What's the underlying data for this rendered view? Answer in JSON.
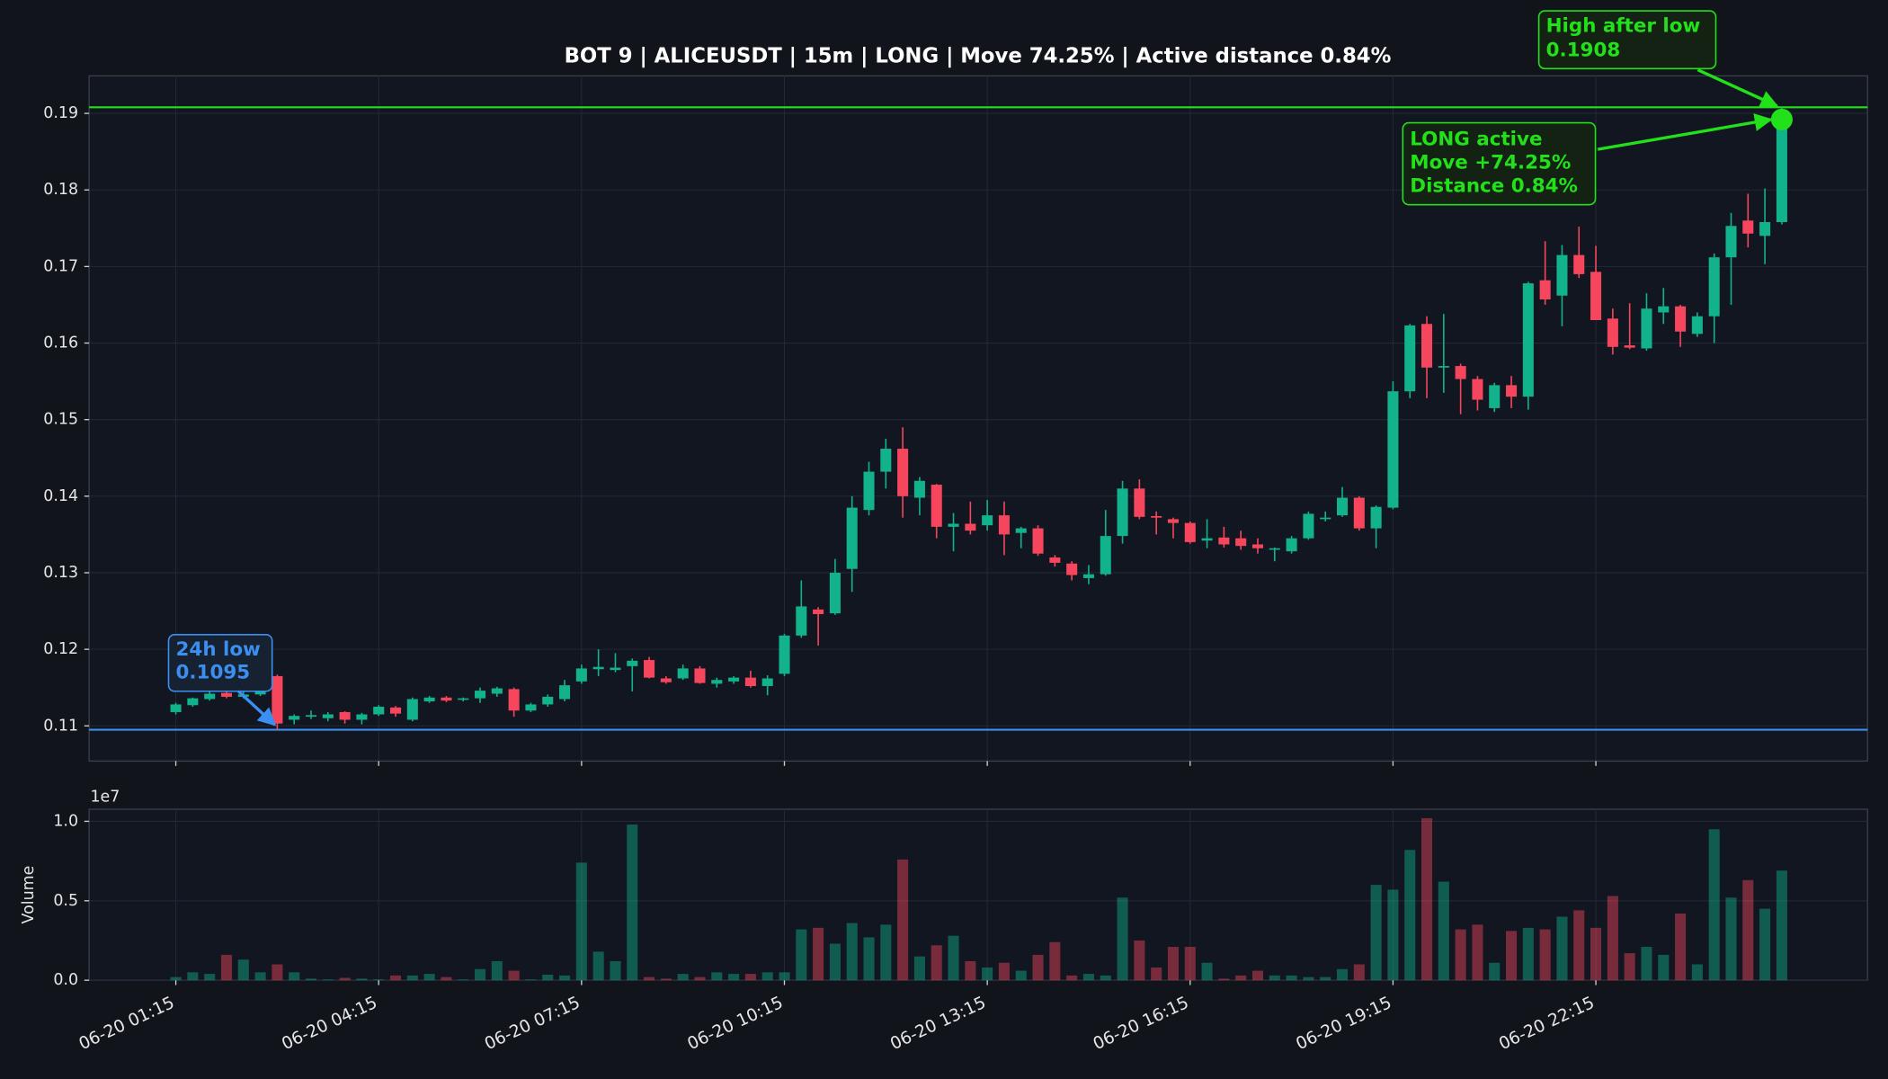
{
  "chart_data": [
    {
      "type": "candlestick",
      "title": "BOT 9 | ALICEUSDT | 15m | LONG | Move 74.25% | Active distance 0.84%",
      "up_color": "#12b28c",
      "down_color": "#f6465d",
      "grid": true,
      "ylim": [
        0.1054,
        0.1949
      ],
      "yticks": [
        0.11,
        0.12,
        0.13,
        0.14,
        0.15,
        0.16,
        0.17,
        0.18,
        0.19
      ],
      "open": [
        0.1118,
        0.1127,
        0.1135,
        0.1143,
        0.1138,
        0.1141,
        0.1165,
        0.1108,
        0.1112,
        0.111,
        0.1118,
        0.1108,
        0.1115,
        0.1124,
        0.1108,
        0.1132,
        0.1137,
        0.1134,
        0.1136,
        0.1142,
        0.1148,
        0.112,
        0.1128,
        0.1135,
        0.1158,
        0.1174,
        0.1173,
        0.1178,
        0.1186,
        0.1162,
        0.1162,
        0.1175,
        0.1155,
        0.1158,
        0.1163,
        0.1152,
        0.1168,
        0.1218,
        0.1252,
        0.1247,
        0.1305,
        0.1382,
        0.1432,
        0.1462,
        0.1398,
        0.1415,
        0.136,
        0.1364,
        0.1362,
        0.1375,
        0.1352,
        0.1358,
        0.132,
        0.1312,
        0.1293,
        0.1298,
        0.1348,
        0.141,
        0.1374,
        0.137,
        0.1365,
        0.1342,
        0.1346,
        0.1345,
        0.1337,
        0.133,
        0.1328,
        0.1345,
        0.137,
        0.1375,
        0.1398,
        0.1358,
        0.1385,
        0.1537,
        0.1625,
        0.1568,
        0.157,
        0.1553,
        0.1515,
        0.1545,
        0.153,
        0.1682,
        0.1662,
        0.1715,
        0.1693,
        0.1632,
        0.1597,
        0.1593,
        0.164,
        0.1648,
        0.1612,
        0.1635,
        0.1712,
        0.176,
        0.174,
        0.1758
      ],
      "high": [
        0.113,
        0.1137,
        0.1145,
        0.1146,
        0.1145,
        0.1152,
        0.1167,
        0.1115,
        0.112,
        0.1118,
        0.1119,
        0.1117,
        0.1127,
        0.1126,
        0.1137,
        0.1139,
        0.1139,
        0.1137,
        0.115,
        0.1151,
        0.115,
        0.113,
        0.1141,
        0.116,
        0.118,
        0.12,
        0.1195,
        0.1188,
        0.119,
        0.1165,
        0.118,
        0.1178,
        0.1163,
        0.1165,
        0.1172,
        0.1166,
        0.122,
        0.129,
        0.1255,
        0.1318,
        0.14,
        0.1445,
        0.1475,
        0.149,
        0.1425,
        0.1416,
        0.1378,
        0.1393,
        0.1395,
        0.1393,
        0.136,
        0.1362,
        0.1323,
        0.1315,
        0.131,
        0.1382,
        0.142,
        0.1422,
        0.138,
        0.1372,
        0.1367,
        0.137,
        0.136,
        0.1355,
        0.1345,
        0.1333,
        0.1348,
        0.138,
        0.138,
        0.1412,
        0.14,
        0.1388,
        0.155,
        0.1625,
        0.1635,
        0.1638,
        0.1573,
        0.1557,
        0.1548,
        0.1557,
        0.168,
        0.1733,
        0.1728,
        0.1752,
        0.1727,
        0.1645,
        0.1652,
        0.1665,
        0.1672,
        0.165,
        0.164,
        0.1717,
        0.177,
        0.1795,
        0.1802,
        0.1908
      ],
      "low": [
        0.1115,
        0.1125,
        0.1133,
        0.1136,
        0.1136,
        0.1139,
        0.1095,
        0.1102,
        0.1109,
        0.1106,
        0.1103,
        0.1102,
        0.1113,
        0.1112,
        0.1106,
        0.113,
        0.1131,
        0.1132,
        0.113,
        0.1138,
        0.1112,
        0.1118,
        0.1125,
        0.1132,
        0.1155,
        0.1165,
        0.117,
        0.1145,
        0.1162,
        0.1155,
        0.116,
        0.1155,
        0.115,
        0.1155,
        0.115,
        0.114,
        0.1165,
        0.1215,
        0.1205,
        0.1245,
        0.1275,
        0.1375,
        0.141,
        0.1372,
        0.1375,
        0.1345,
        0.1328,
        0.135,
        0.1355,
        0.1323,
        0.1332,
        0.1322,
        0.1308,
        0.129,
        0.1285,
        0.1296,
        0.1338,
        0.137,
        0.135,
        0.1345,
        0.1338,
        0.1332,
        0.1333,
        0.133,
        0.1325,
        0.1315,
        0.1325,
        0.1343,
        0.1367,
        0.1373,
        0.1355,
        0.1332,
        0.1383,
        0.1528,
        0.1528,
        0.1535,
        0.1507,
        0.1512,
        0.151,
        0.1515,
        0.1513,
        0.165,
        0.1622,
        0.1685,
        0.163,
        0.1585,
        0.1592,
        0.159,
        0.1625,
        0.1595,
        0.1608,
        0.16,
        0.165,
        0.1725,
        0.1703,
        0.1755
      ],
      "close": [
        0.1128,
        0.1136,
        0.1142,
        0.1138,
        0.1141,
        0.115,
        0.1103,
        0.1113,
        0.1114,
        0.1115,
        0.1108,
        0.1115,
        0.1125,
        0.1116,
        0.1135,
        0.1137,
        0.1133,
        0.1136,
        0.1146,
        0.1149,
        0.112,
        0.1128,
        0.1138,
        0.1153,
        0.1175,
        0.1177,
        0.1176,
        0.1185,
        0.1163,
        0.1157,
        0.1175,
        0.1156,
        0.116,
        0.1163,
        0.1152,
        0.1162,
        0.1218,
        0.1256,
        0.1246,
        0.13,
        0.1385,
        0.1432,
        0.1462,
        0.14,
        0.142,
        0.136,
        0.1364,
        0.1355,
        0.1375,
        0.135,
        0.1358,
        0.1325,
        0.1313,
        0.1297,
        0.1298,
        0.1348,
        0.141,
        0.1373,
        0.1372,
        0.1365,
        0.134,
        0.1345,
        0.1337,
        0.1335,
        0.1332,
        0.1332,
        0.1345,
        0.1377,
        0.1372,
        0.1398,
        0.1358,
        0.1386,
        0.1537,
        0.1623,
        0.1568,
        0.157,
        0.1553,
        0.1526,
        0.1545,
        0.153,
        0.1678,
        0.1657,
        0.1715,
        0.169,
        0.163,
        0.1595,
        0.1594,
        0.1645,
        0.1648,
        0.1615,
        0.1635,
        0.1712,
        0.1753,
        0.1743,
        0.1758,
        0.1892
      ],
      "levels": [
        {
          "name": "24h low",
          "value": 0.1095,
          "color": "#3b8ff0"
        },
        {
          "name": "High after low",
          "value": 0.1908,
          "color": "#22e01a"
        }
      ],
      "annotation": {
        "lines": [
          "LONG active",
          "Move +74.25%",
          "Distance 0.84%"
        ],
        "color": "#22e01a"
      }
    },
    {
      "type": "bar",
      "y_label": "Volume",
      "offset_label": "1e7",
      "grid": true,
      "ylim": [
        0,
        10760000
      ],
      "yticks": [
        {
          "value": 0,
          "label": "0.0"
        },
        {
          "value": 5000000,
          "label": "0.5"
        },
        {
          "value": 10000000,
          "label": "1.0"
        }
      ],
      "categories": [
        "06-20 01:15",
        null,
        null,
        null,
        null,
        null,
        null,
        null,
        null,
        null,
        null,
        null,
        "06-20 04:15",
        null,
        null,
        null,
        null,
        null,
        null,
        null,
        null,
        null,
        null,
        null,
        "06-20 07:15",
        null,
        null,
        null,
        null,
        null,
        null,
        null,
        null,
        null,
        null,
        null,
        "06-20 10:15",
        null,
        null,
        null,
        null,
        null,
        null,
        null,
        null,
        null,
        null,
        null,
        "06-20 13:15",
        null,
        null,
        null,
        null,
        null,
        null,
        null,
        null,
        null,
        null,
        null,
        "06-20 16:15",
        null,
        null,
        null,
        null,
        null,
        null,
        null,
        null,
        null,
        null,
        null,
        "06-20 19:15",
        null,
        null,
        null,
        null,
        null,
        null,
        null,
        null,
        null,
        null,
        null,
        "06-20 22:15",
        null,
        null,
        null,
        null,
        null,
        null,
        null,
        null,
        null,
        null,
        null
      ],
      "values": [
        200000,
        500000,
        400000,
        1600000,
        1300000,
        500000,
        1000000,
        500000,
        100000,
        50000,
        150000,
        100000,
        50000,
        300000,
        300000,
        400000,
        200000,
        50000,
        700000,
        1200000,
        600000,
        50000,
        350000,
        300000,
        7400000,
        1800000,
        1200000,
        9800000,
        200000,
        100000,
        400000,
        200000,
        500000,
        400000,
        400000,
        500000,
        500000,
        3200000,
        3300000,
        2300000,
        3600000,
        2700000,
        3500000,
        7600000,
        1500000,
        2200000,
        2800000,
        1200000,
        800000,
        1100000,
        600000,
        1600000,
        2400000,
        300000,
        400000,
        300000,
        5200000,
        2500000,
        800000,
        2100000,
        2100000,
        1100000,
        100000,
        300000,
        600000,
        300000,
        300000,
        200000,
        200000,
        700000,
        1000000,
        6000000,
        5700000,
        8200000,
        10200000,
        6200000,
        3200000,
        3500000,
        1100000,
        3100000,
        3300000,
        3200000,
        4000000,
        4400000,
        3300000,
        5300000,
        1700000,
        2100000,
        1600000,
        4200000,
        1000000,
        9500000,
        5200000,
        6300000,
        4500000,
        6900000
      ]
    }
  ]
}
